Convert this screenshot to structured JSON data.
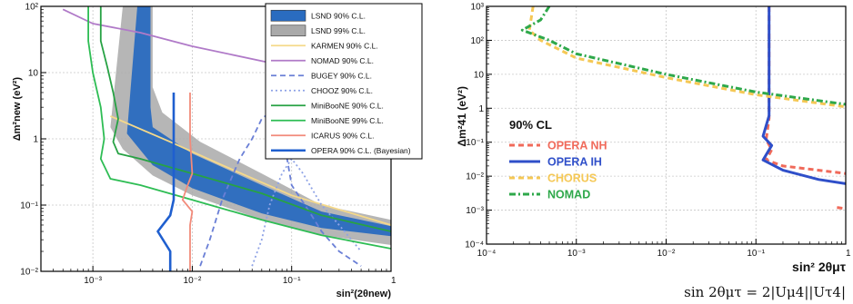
{
  "chart_data": [
    {
      "type": "line",
      "panel": "left",
      "title": "",
      "xlabel": "sin²(2θnew)",
      "ylabel": "Δm²new (eV²)",
      "xscale": "log",
      "yscale": "log",
      "xlim": [
        0.0003,
        1
      ],
      "ylim": [
        0.01,
        100
      ],
      "x_ticks": [
        {
          "v": 0.001,
          "label": "10⁻³"
        },
        {
          "v": 0.01,
          "label": "10⁻²"
        },
        {
          "v": 0.1,
          "label": "10⁻¹"
        },
        {
          "v": 1,
          "label": "1"
        }
      ],
      "y_ticks": [
        {
          "v": 0.01,
          "label": "10⁻²"
        },
        {
          "v": 0.1,
          "label": "10⁻¹"
        },
        {
          "v": 1,
          "label": "1"
        },
        {
          "v": 10,
          "label": "10"
        },
        {
          "v": 100,
          "label": "10²"
        }
      ],
      "grid": true,
      "legend_position": "top-right",
      "series": [
        {
          "name": "LSND 99% C.L.",
          "kind": "band",
          "color": "#a9a9a9",
          "upper": [
            [
              0.002,
              100
            ],
            [
              0.004,
              100
            ],
            [
              0.004,
              6
            ],
            [
              0.005,
              2.5
            ],
            [
              0.012,
              0.9
            ],
            [
              0.05,
              0.3
            ],
            [
              0.2,
              0.1
            ],
            [
              1,
              0.06
            ]
          ],
          "lower": [
            [
              0.0015,
              1.5
            ],
            [
              0.002,
              0.7
            ],
            [
              0.004,
              0.28
            ],
            [
              0.01,
              0.14
            ],
            [
              0.05,
              0.06
            ],
            [
              0.2,
              0.035
            ],
            [
              1,
              0.025
            ]
          ]
        },
        {
          "name": "LSND 90% C.L.",
          "kind": "band",
          "color": "#2a6cc0",
          "upper": [
            [
              0.0028,
              100
            ],
            [
              0.0038,
              100
            ],
            [
              0.0038,
              3
            ],
            [
              0.004,
              1.5
            ],
            [
              0.01,
              0.6
            ],
            [
              0.05,
              0.2
            ],
            [
              0.2,
              0.08
            ],
            [
              1,
              0.048
            ]
          ],
          "lower": [
            [
              0.0022,
              1.2
            ],
            [
              0.004,
              0.4
            ],
            [
              0.01,
              0.18
            ],
            [
              0.05,
              0.075
            ],
            [
              0.2,
              0.045
            ],
            [
              1,
              0.034
            ]
          ]
        },
        {
          "name": "KARMEN 90% C.L.",
          "kind": "line",
          "color": "#f5d98a",
          "style": "solid",
          "points": [
            [
              0.0015,
              2.2
            ],
            [
              0.006,
              0.9
            ],
            [
              0.02,
              0.4
            ],
            [
              0.1,
              0.14
            ],
            [
              1,
              0.05
            ]
          ]
        },
        {
          "name": "NOMAD 90% C.L.",
          "kind": "line",
          "color": "#b07ac8",
          "style": "solid",
          "points": [
            [
              0.0005,
              90
            ],
            [
              0.001,
              55
            ],
            [
              0.003,
              40
            ],
            [
              0.01,
              25
            ],
            [
              0.1,
              12
            ],
            [
              1,
              8
            ]
          ]
        },
        {
          "name": "BUGEY 90% C.L.",
          "kind": "line",
          "color": "#6a7fd6",
          "style": "dashed",
          "points": [
            [
              0.012,
              0.012
            ],
            [
              0.015,
              0.03
            ],
            [
              0.02,
              0.12
            ],
            [
              0.03,
              0.5
            ],
            [
              0.04,
              1
            ],
            [
              0.05,
              2
            ],
            [
              0.07,
              3
            ],
            [
              0.09,
              2.5
            ],
            [
              0.1,
              1
            ],
            [
              0.09,
              0.5
            ],
            [
              0.1,
              0.2
            ],
            [
              0.15,
              0.08
            ],
            [
              0.2,
              0.04
            ],
            [
              0.3,
              0.02
            ],
            [
              0.5,
              0.012
            ]
          ]
        },
        {
          "name": "CHOOZ 90% C.L.",
          "kind": "line",
          "color": "#8fa3e6",
          "style": "dotted",
          "points": [
            [
              0.04,
              0.012
            ],
            [
              0.05,
              0.03
            ],
            [
              0.06,
              0.1
            ],
            [
              0.08,
              0.3
            ],
            [
              0.1,
              0.5
            ],
            [
              0.13,
              0.3
            ],
            [
              0.2,
              0.1
            ],
            [
              0.3,
              0.05
            ],
            [
              0.5,
              0.02
            ]
          ]
        },
        {
          "name": "MiniBooNE 90% C.L.",
          "kind": "line",
          "color": "#27a244",
          "style": "solid",
          "points": [
            [
              0.0012,
              100
            ],
            [
              0.0012,
              30
            ],
            [
              0.0014,
              12
            ],
            [
              0.0016,
              5
            ],
            [
              0.0018,
              2
            ],
            [
              0.0016,
              0.9
            ],
            [
              0.0018,
              0.6
            ],
            [
              0.003,
              0.5
            ],
            [
              0.01,
              0.3
            ],
            [
              0.05,
              0.15
            ],
            [
              0.2,
              0.07
            ],
            [
              1,
              0.04
            ]
          ]
        },
        {
          "name": "MiniBooNE 99% C.L.",
          "kind": "line",
          "color": "#2ebd54",
          "style": "solid",
          "points": [
            [
              0.0009,
              100
            ],
            [
              0.0009,
              30
            ],
            [
              0.001,
              10
            ],
            [
              0.0012,
              3
            ],
            [
              0.0013,
              1
            ],
            [
              0.0012,
              0.5
            ],
            [
              0.0015,
              0.25
            ],
            [
              0.003,
              0.2
            ],
            [
              0.01,
              0.12
            ],
            [
              0.05,
              0.06
            ],
            [
              0.2,
              0.035
            ],
            [
              1,
              0.022
            ]
          ]
        },
        {
          "name": "ICARUS 90% C.L.",
          "kind": "line",
          "color": "#f28a7a",
          "style": "solid",
          "points": [
            [
              0.0095,
              0.01
            ],
            [
              0.0095,
              0.05
            ],
            [
              0.01,
              0.08
            ],
            [
              0.008,
              0.12
            ],
            [
              0.009,
              0.2
            ],
            [
              0.01,
              0.3
            ],
            [
              0.0095,
              1
            ],
            [
              0.0095,
              5
            ]
          ]
        },
        {
          "name": "OPERA 90% C.L. (Bayesian)",
          "kind": "line",
          "color": "#1f5fcf",
          "style": "solid",
          "points": [
            [
              0.006,
              0.01
            ],
            [
              0.006,
              0.02
            ],
            [
              0.0045,
              0.04
            ],
            [
              0.006,
              0.07
            ],
            [
              0.0065,
              0.12
            ],
            [
              0.0065,
              1
            ],
            [
              0.0065,
              5
            ]
          ]
        }
      ],
      "legend_items": [
        {
          "label": "LSND 90% C.L.",
          "color": "#2a6cc0",
          "kind": "box"
        },
        {
          "label": "LSND 99% C.L.",
          "color": "#a9a9a9",
          "kind": "box"
        },
        {
          "label": "KARMEN 90% C.L.",
          "color": "#f5d98a",
          "kind": "line"
        },
        {
          "label": "NOMAD 90% C.L.",
          "color": "#b07ac8",
          "kind": "line"
        },
        {
          "label": "BUGEY 90% C.L.",
          "color": "#6a7fd6",
          "kind": "dashed"
        },
        {
          "label": "CHOOZ 90% C.L.",
          "color": "#8fa3e6",
          "kind": "dotted"
        },
        {
          "label": "MiniBooNE 90% C.L.",
          "color": "#27a244",
          "kind": "line"
        },
        {
          "label": "MiniBooNE 99% C.L.",
          "color": "#2ebd54",
          "kind": "line"
        },
        {
          "label": "ICARUS 90% C.L.",
          "color": "#f28a7a",
          "kind": "line"
        },
        {
          "label": "OPERA 90% C.L. (Bayesian)",
          "color": "#1f5fcf",
          "kind": "line"
        }
      ]
    },
    {
      "type": "line",
      "panel": "right",
      "title": "",
      "xlabel": "sin² 2θμτ",
      "ylabel": "Δm²41 (eV²)",
      "xscale": "log",
      "yscale": "log",
      "xlim": [
        0.0001,
        1
      ],
      "ylim": [
        0.0001,
        1000
      ],
      "x_ticks": [
        {
          "v": 0.0001,
          "label": "10⁻⁴"
        },
        {
          "v": 0.001,
          "label": "10⁻³"
        },
        {
          "v": 0.01,
          "label": "10⁻²"
        },
        {
          "v": 0.1,
          "label": "10⁻¹"
        },
        {
          "v": 1,
          "label": "1"
        }
      ],
      "y_ticks": [
        {
          "v": 0.0001,
          "label": "10⁻⁴"
        },
        {
          "v": 0.001,
          "label": "10⁻³"
        },
        {
          "v": 0.01,
          "label": "10⁻²"
        },
        {
          "v": 0.1,
          "label": "10⁻¹"
        },
        {
          "v": 1,
          "label": "1"
        },
        {
          "v": 10,
          "label": "10"
        },
        {
          "v": 100,
          "label": "10²"
        },
        {
          "v": 1000,
          "label": "10³"
        }
      ],
      "grid": true,
      "legend_position": "center-left",
      "legend_title": "90% CL",
      "series": [
        {
          "name": "OPERA NH",
          "color": "#f06a5a",
          "style": "dashed",
          "points": [
            [
              0.14,
              1000
            ],
            [
              0.14,
              0.5
            ],
            [
              0.13,
              0.12
            ],
            [
              0.15,
              0.06
            ],
            [
              0.13,
              0.03
            ],
            [
              0.2,
              0.02
            ],
            [
              0.5,
              0.015
            ],
            [
              1,
              0.012
            ]
          ],
          "extra": [
            [
              0.8,
              0.0012
            ],
            [
              1,
              0.0011
            ]
          ]
        },
        {
          "name": "OPERA IH",
          "color": "#2f4fc9",
          "style": "solid",
          "points": [
            [
              0.14,
              1000
            ],
            [
              0.14,
              0.6
            ],
            [
              0.12,
              0.15
            ],
            [
              0.15,
              0.08
            ],
            [
              0.12,
              0.03
            ],
            [
              0.2,
              0.015
            ],
            [
              0.5,
              0.008
            ],
            [
              1,
              0.006
            ]
          ]
        },
        {
          "name": "CHORUS",
          "color": "#f5c855",
          "style": "dashed",
          "points": [
            [
              0.00033,
              1000
            ],
            [
              0.0003,
              200
            ],
            [
              0.0004,
              100
            ],
            [
              0.001,
              30
            ],
            [
              0.01,
              8
            ],
            [
              0.1,
              2.5
            ],
            [
              1,
              1.1
            ]
          ]
        },
        {
          "name": "NOMAD",
          "color": "#2ea84a",
          "style": "dashdot",
          "points": [
            [
              0.0005,
              1000
            ],
            [
              0.0004,
              400
            ],
            [
              0.00025,
              200
            ],
            [
              0.0005,
              100
            ],
            [
              0.001,
              40
            ],
            [
              0.01,
              10
            ],
            [
              0.1,
              3
            ],
            [
              1,
              1.3
            ]
          ]
        }
      ]
    }
  ],
  "formula": "sin 2θμτ = 2|Uμ4||Uτ4|"
}
